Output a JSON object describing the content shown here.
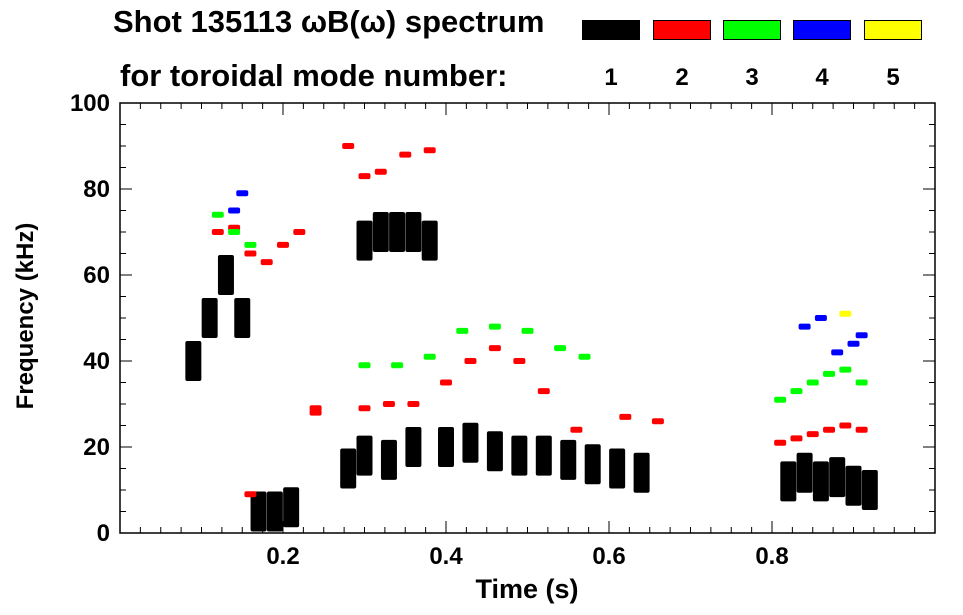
{
  "header": {
    "line1": "Shot 135113 ωB(ω) spectrum",
    "line2": "for toroidal mode number:"
  },
  "legend": [
    {
      "label": "1",
      "color": "#000000"
    },
    {
      "label": "2",
      "color": "#ff0000"
    },
    {
      "label": "3",
      "color": "#00ff00"
    },
    {
      "label": "4",
      "color": "#0000ff"
    },
    {
      "label": "5",
      "color": "#ffff00"
    }
  ],
  "chart_data": {
    "type": "scatter",
    "title": "Shot 135113 ωB(ω) spectrum for toroidal mode number:",
    "xlabel": "Time (s)",
    "ylabel": "Frequency (kHz)",
    "xlim": [
      0.0,
      1.0
    ],
    "ylim": [
      0,
      100
    ],
    "xticks": [
      0.2,
      0.4,
      0.6,
      0.8
    ],
    "xtick_labels": [
      "0.2",
      "0.4",
      "0.6",
      "0.8"
    ],
    "yticks": [
      0,
      20,
      40,
      60,
      80,
      100
    ],
    "ytick_labels": [
      "0",
      "20",
      "40",
      "60",
      "80",
      "100"
    ],
    "series": [
      {
        "name": "1",
        "color": "#000000",
        "x": [
          0.09,
          0.11,
          0.13,
          0.15,
          0.17,
          0.19,
          0.21,
          0.28,
          0.3,
          0.32,
          0.34,
          0.36,
          0.38,
          0.3,
          0.33,
          0.36,
          0.4,
          0.43,
          0.46,
          0.49,
          0.52,
          0.55,
          0.58,
          0.61,
          0.64,
          0.82,
          0.84,
          0.86,
          0.88,
          0.9,
          0.92
        ],
        "y": [
          40,
          50,
          60,
          50,
          5,
          5,
          6,
          15,
          68,
          70,
          70,
          70,
          68,
          18,
          17,
          20,
          20,
          21,
          19,
          18,
          18,
          17,
          16,
          15,
          14,
          12,
          14,
          12,
          13,
          11,
          10
        ]
      },
      {
        "name": "2",
        "color": "#ff0000",
        "x": [
          0.12,
          0.14,
          0.16,
          0.18,
          0.2,
          0.22,
          0.24,
          0.28,
          0.3,
          0.32,
          0.35,
          0.38,
          0.3,
          0.33,
          0.36,
          0.4,
          0.43,
          0.46,
          0.49,
          0.52,
          0.56,
          0.62,
          0.66,
          0.81,
          0.83,
          0.85,
          0.87,
          0.89,
          0.91,
          0.16,
          0.24
        ],
        "y": [
          70,
          71,
          65,
          63,
          67,
          70,
          28,
          90,
          83,
          84,
          88,
          89,
          29,
          30,
          30,
          35,
          40,
          43,
          40,
          33,
          24,
          27,
          26,
          21,
          22,
          23,
          24,
          25,
          24,
          9,
          29
        ]
      },
      {
        "name": "3",
        "color": "#00ff00",
        "x": [
          0.12,
          0.14,
          0.16,
          0.3,
          0.34,
          0.38,
          0.42,
          0.46,
          0.5,
          0.54,
          0.57,
          0.81,
          0.83,
          0.85,
          0.87,
          0.89,
          0.91
        ],
        "y": [
          74,
          70,
          67,
          39,
          39,
          41,
          47,
          48,
          47,
          43,
          41,
          31,
          33,
          35,
          37,
          38,
          35
        ]
      },
      {
        "name": "4",
        "color": "#0000ff",
        "x": [
          0.14,
          0.15,
          0.84,
          0.86,
          0.88,
          0.9,
          0.91
        ],
        "y": [
          75,
          79,
          48,
          50,
          42,
          44,
          46
        ]
      },
      {
        "name": "5",
        "color": "#ffff00",
        "x": [
          0.89
        ],
        "y": [
          51
        ]
      }
    ]
  }
}
